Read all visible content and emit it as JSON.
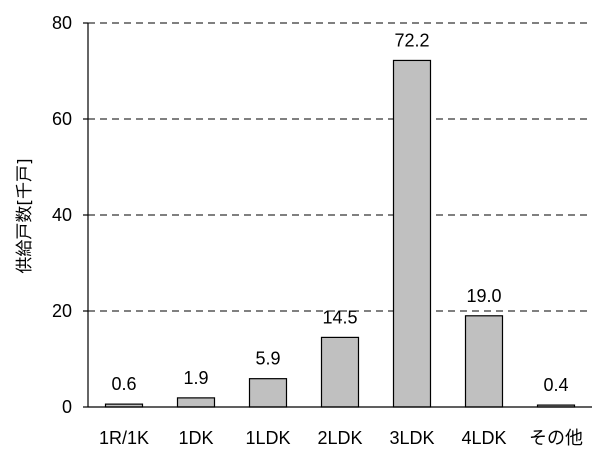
{
  "chart_data": {
    "type": "bar",
    "title": "",
    "xlabel": "",
    "ylabel": "供給戸数[千戸]",
    "categories": [
      "1R/1K",
      "1DK",
      "1LDK",
      "2LDK",
      "3LDK",
      "4LDK",
      "その他"
    ],
    "values": [
      0.6,
      1.9,
      5.9,
      14.5,
      72.2,
      19.0,
      0.4
    ],
    "value_labels": [
      "0.6",
      "1.9",
      "5.9",
      "14.5",
      "72.2",
      "19.0",
      "0.4"
    ],
    "ylim": [
      0,
      80
    ],
    "yticks": [
      0,
      20,
      40,
      60,
      80
    ],
    "grid": true,
    "bar_color": "#c0c0c0"
  }
}
